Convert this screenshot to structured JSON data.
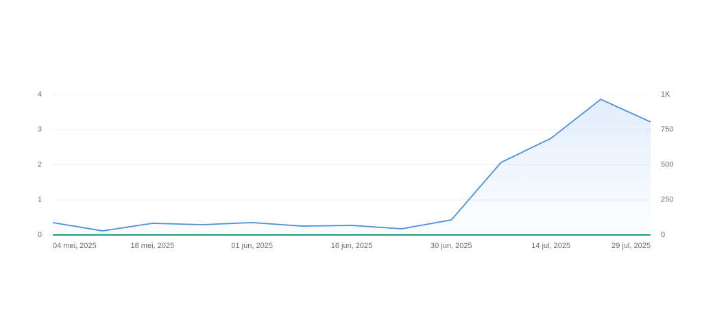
{
  "chart_data": {
    "type": "line",
    "categories": [
      "04 mei, 2025",
      null,
      "18 mei, 2025",
      null,
      "01 jun, 2025",
      null,
      "16 jun, 2025",
      null,
      "30 jun, 2025",
      null,
      "14 jul, 2025",
      null,
      "29 jul, 2025"
    ],
    "series": [
      {
        "color": "#1a9e7a",
        "values": [
          0,
          0,
          0,
          0,
          0,
          0,
          0,
          0,
          0,
          0,
          0,
          0,
          0
        ]
      },
      {
        "color": "#4a90e2",
        "axis": "y2",
        "area": true,
        "values": [
          88,
          29,
          83,
          73,
          88,
          63,
          68,
          44,
          107,
          517,
          688,
          966,
          805
        ]
      }
    ],
    "ylim": [
      0,
      4
    ],
    "yticks": [
      0,
      1,
      2,
      3,
      4
    ],
    "y2lim": [
      0,
      1000
    ],
    "y2ticks": [
      0,
      250,
      500,
      750,
      {
        "value": 1000,
        "label": "1K"
      }
    ],
    "grid": true
  }
}
